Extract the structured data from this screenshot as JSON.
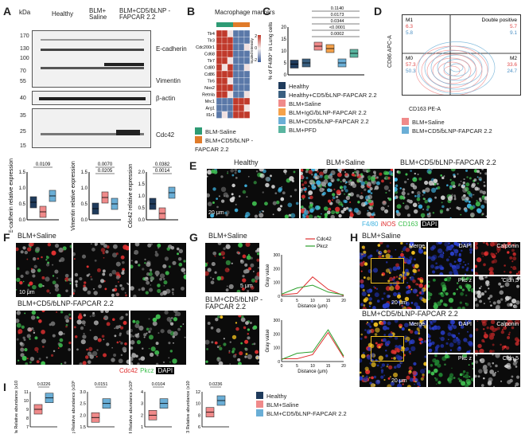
{
  "panel_letters": [
    "A",
    "B",
    "C",
    "D",
    "E",
    "F",
    "G",
    "H",
    "I"
  ],
  "A": {
    "kda_label": "kDa",
    "groups": [
      "Healthy",
      "BLM+ Saline",
      "BLM+CD5/ɓLNP -FAPCAR 2.2"
    ],
    "markers_top": [
      {
        "mw": "170"
      },
      {
        "mw": "130"
      },
      {
        "mw": "100"
      },
      {
        "mw": "70"
      },
      {
        "mw": "55"
      }
    ],
    "band_labels": [
      "E-cadherin",
      "Vimentin",
      "β-actin",
      "Cdc42"
    ],
    "mw_actin": "40",
    "markers_cdc": [
      "35",
      "25",
      "15"
    ],
    "quant": [
      {
        "ylabel": "E-cadherin relative expression",
        "p": [
          "0.0109"
        ],
        "ticks": [
          "0.0",
          "0.5",
          "1.0",
          "1.5"
        ]
      },
      {
        "ylabel": "Vimentin relative expression",
        "p": [
          "0.0070",
          "0.0205"
        ],
        "ticks": [
          "0.0",
          "0.5",
          "1.0",
          "1.5"
        ]
      },
      {
        "ylabel": "Cdc42 relative expression",
        "p": [
          "0.0382",
          "0.0014"
        ],
        "ticks": [
          "0.0",
          "0.5",
          "1.0",
          "1.5",
          "2.0"
        ]
      }
    ]
  },
  "B": {
    "title": "Macrophage markers",
    "genes": [
      "Tlr4",
      "Tlr3",
      "Cdc200r1",
      "Cd68",
      "Tlr7",
      "Cd80",
      "Cd86",
      "Tlr6",
      "Nos2",
      "Retnla",
      "Mrc1",
      "Arg1",
      "Il1r1"
    ],
    "scale_label": "Scaled Intensity",
    "scale_ticks": [
      "2",
      "0",
      "-2"
    ],
    "legend": [
      "BLM-Saline",
      "BLM+CD5/ɓLNP -FAPCAR 2.2"
    ],
    "colors": {
      "saline": "#2e9b74",
      "car": "#e07b2a"
    }
  },
  "C": {
    "ylabel": "% of F4/80⁺ in Lung cells",
    "yticks": [
      "0",
      "5",
      "10",
      "15",
      "20"
    ],
    "p": [
      "0.1140",
      "0.0173",
      "0.0344",
      "<0.0001",
      "0.0002"
    ],
    "legend": [
      "Healthy",
      "Healthy+CD5/ɓLNP-FAPCAR 2.2",
      "BLM+Saline",
      "BLM+IgG/ɓLNP-FAPCAR 2.2",
      "BLM+CD5/ɓLNP-FAPCAR 2.2",
      "BLM+PFD"
    ],
    "colors": [
      "#1f3b5c",
      "#3a5f80",
      "#f08a8a",
      "#f5a14a",
      "#6aaed6",
      "#5ab5a0"
    ],
    "chart_data": {
      "type": "box",
      "categories": [
        "Healthy",
        "Healthy+CD5/ɓLNP-FAPCAR 2.2",
        "BLM+Saline",
        "BLM+IgG/ɓLNP-FAPCAR 2.2",
        "BLM+CD5/ɓLNP-FAPCAR 2.2",
        "BLM+PFD"
      ],
      "medians": [
        4.5,
        5,
        12,
        11,
        5,
        9
      ],
      "ylim": [
        0,
        20
      ]
    }
  },
  "D": {
    "quadrants": [
      "M1",
      "Double positive",
      "M0",
      "M2"
    ],
    "values": {
      "M1": [
        "6.3",
        "5.8"
      ],
      "DP": [
        "5.7",
        "9.1"
      ],
      "M0": [
        "57.3",
        "50.3"
      ],
      "M2": [
        "33.6",
        "24.7"
      ]
    },
    "xlabel": "CD163 PE-A",
    "ylabel": "CD86 APC-A",
    "legend": [
      "BLM+Saline",
      "BLM+CD5/ɓLNP-FAPCAR 2.2"
    ],
    "colors": [
      "#f08a8a",
      "#6aaed6"
    ]
  },
  "E": {
    "titles": [
      "Healthy",
      "BLM+Saline",
      "BLM+CD5/ɓLNP-FAPCAR 2.2"
    ],
    "scale": "20 μm",
    "stain": [
      {
        "t": "F4/80",
        "c": "#3fb3e0"
      },
      {
        "t": "iNOS",
        "c": "#e03030"
      },
      {
        "t": "CD163",
        "c": "#40c050"
      },
      {
        "t": "DAPI",
        "c": "#ffffff"
      }
    ]
  },
  "F": {
    "titles": [
      "BLM+Saline",
      "BLM+CD5/ɓLNP-FAPCAR 2.2"
    ],
    "scale": "10 μm",
    "stain": [
      {
        "t": "Cdc42",
        "c": "#e03030"
      },
      {
        "t": "Pkcz",
        "c": "#40c050"
      },
      {
        "t": "DAPI",
        "c": "#ffffff"
      }
    ]
  },
  "G": {
    "titles": [
      "BLM+Saline",
      "BLM+CD5/ɓLNP -FAPCAR 2.2"
    ],
    "scale": "5 μm",
    "legend": [
      "Cdc42",
      "Pkcz"
    ],
    "colors": [
      "#e03030",
      "#2ca02c"
    ],
    "ylabel": "Gray value",
    "xlabel": "Distance (μm)",
    "chart_data": [
      {
        "type": "line",
        "x": [
          0,
          5,
          10,
          15,
          20
        ],
        "ylim": [
          0,
          300
        ],
        "yticks": [
          "0",
          "100",
          "200",
          "300"
        ],
        "series": [
          {
            "name": "Cdc42",
            "values": [
              10,
              20,
              140,
              50,
              5
            ]
          },
          {
            "name": "Pkcz",
            "values": [
              15,
              60,
              80,
              30,
              10
            ]
          }
        ]
      },
      {
        "type": "line",
        "x": [
          0,
          5,
          10,
          15,
          20
        ],
        "ylim": [
          0,
          300
        ],
        "yticks": [
          "0",
          "100",
          "200",
          "300"
        ],
        "series": [
          {
            "name": "Cdc42",
            "values": [
              20,
              20,
              50,
              210,
              30
            ]
          },
          {
            "name": "Pkcz",
            "values": [
              15,
              60,
              70,
              230,
              40
            ]
          }
        ]
      }
    ]
  },
  "H": {
    "titles": [
      "BLM+Saline",
      "BLM+CD5/ɓLNP-FAPCAR 2.2"
    ],
    "tiles": [
      "Merge",
      "DAPI",
      "Calponin",
      "Pkc z",
      "Cldn 5"
    ],
    "scale": "20 μm"
  },
  "I": {
    "panels": [
      {
        "ylabel": "Vegfa Relative abundance (x10⁶)",
        "p": "0.0226",
        "ticks": [
          "7",
          "8",
          "9",
          "10",
          "11"
        ]
      },
      {
        "ylabel": "Eng Relative abundance (x10⁶)",
        "p": "0.0151",
        "ticks": [
          "1.5",
          "2.0",
          "2.5",
          "3.0"
        ]
      },
      {
        "ylabel": "Cx4 Relative abundance (x10⁶)",
        "p": "0.0104",
        "ticks": [
          "1",
          "2",
          "3",
          "4"
        ]
      },
      {
        "ylabel": "Cx13 Relative abundance (x10⁶)",
        "p": "0.0236",
        "ticks": [
          "6",
          "8",
          "10",
          "12"
        ]
      }
    ],
    "legend": [
      "Healthy",
      "BLM+Saline",
      "BLM+CD5/ɓLNP-FAPCAR 2.2"
    ],
    "colors": [
      "#1f3b5c",
      "#f08a8a",
      "#6aaed6"
    ]
  }
}
